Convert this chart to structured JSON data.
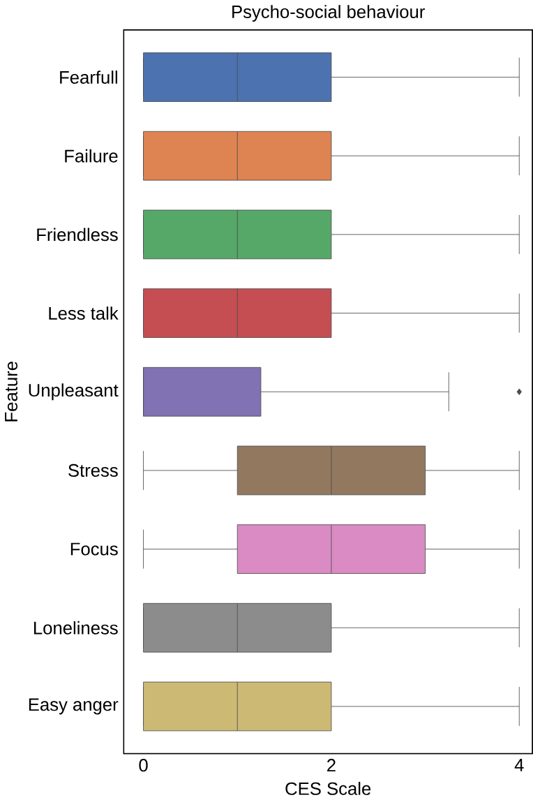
{
  "chart_data": {
    "type": "box",
    "title": "Psycho-social behaviour",
    "xlabel": "CES Scale",
    "ylabel": "Feature",
    "orientation": "horizontal",
    "categories": [
      "Fearfull",
      "Failure",
      "Friendless",
      "Less talk",
      "Unpleasant",
      "Stress",
      "Focus",
      "Loneliness",
      "Easy anger"
    ],
    "colors": [
      "#4c72b0",
      "#dd8452",
      "#55a868",
      "#c44e52",
      "#8172b3",
      "#937860",
      "#da8bc3",
      "#8c8c8c",
      "#ccb974"
    ],
    "boxes": [
      {
        "low": 0,
        "q1": 0,
        "median": 1,
        "q3": 2,
        "high": 4
      },
      {
        "low": 0,
        "q1": 0,
        "median": 1,
        "q3": 2,
        "high": 4
      },
      {
        "low": 0,
        "q1": 0,
        "median": 1,
        "q3": 2,
        "high": 4
      },
      {
        "low": 0,
        "q1": 0,
        "median": 1,
        "q3": 2,
        "high": 4
      },
      {
        "low": 0,
        "q1": 0,
        "median": 0,
        "q3": 1.25,
        "high": 3.25,
        "outliers": [
          4
        ]
      },
      {
        "low": 0,
        "q1": 1,
        "median": 2,
        "q3": 3,
        "high": 4
      },
      {
        "low": 0,
        "q1": 1,
        "median": 2,
        "q3": 3,
        "high": 4
      },
      {
        "low": 0,
        "q1": 0,
        "median": 1,
        "q3": 2,
        "high": 4
      },
      {
        "low": 0,
        "q1": 0,
        "median": 1,
        "q3": 2,
        "high": 4
      }
    ],
    "xlim": [
      -0.21,
      4.14
    ],
    "xticks": [
      0,
      2,
      4
    ]
  }
}
